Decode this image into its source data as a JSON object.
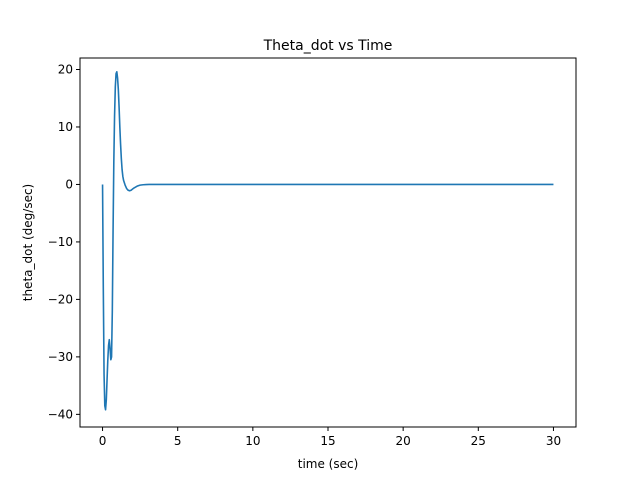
{
  "chart_data": {
    "type": "line",
    "title": "Theta_dot vs Time",
    "xlabel": "time (sec)",
    "ylabel": "theta_dot (deg/sec)",
    "xlim": [
      -1.5,
      31.5
    ],
    "ylim": [
      -42.2,
      22.0
    ],
    "xticks": [
      0,
      5,
      10,
      15,
      20,
      25,
      30
    ],
    "yticks": [
      -40,
      -30,
      -20,
      -10,
      0,
      10,
      20
    ],
    "grid": false,
    "legend": "none",
    "series": [
      {
        "color": "#1f77b4",
        "x": [
          0,
          0.05,
          0.1,
          0.15,
          0.2,
          0.25,
          0.3,
          0.35,
          0.4,
          0.45,
          0.5,
          0.55,
          0.6,
          0.65,
          0.7,
          0.75,
          0.8,
          0.85,
          0.9,
          0.95,
          1.0,
          1.05,
          1.1,
          1.15,
          1.2,
          1.25,
          1.3,
          1.35,
          1.4,
          1.5,
          1.6,
          1.7,
          1.8,
          1.9,
          2.0,
          2.1,
          2.2,
          2.3,
          2.4,
          2.5,
          2.7,
          2.9,
          3.1,
          3.3,
          3.6,
          4.0,
          4.5,
          5,
          6,
          8,
          10,
          15,
          20,
          25,
          30
        ],
        "y": [
          0,
          -18,
          -33,
          -38.5,
          -39.2,
          -37.5,
          -34,
          -30.5,
          -28,
          -27,
          -28.5,
          -30.5,
          -30,
          -22,
          -8,
          4,
          12,
          17,
          19.3,
          19.6,
          18.5,
          16.5,
          13.5,
          10,
          7,
          4.5,
          2.6,
          1.4,
          0.7,
          -0.1,
          -0.7,
          -1.0,
          -1.1,
          -1.0,
          -0.8,
          -0.6,
          -0.45,
          -0.3,
          -0.2,
          -0.12,
          -0.05,
          -0.02,
          0,
          0,
          0,
          0,
          0,
          0,
          0,
          0,
          0,
          0,
          0,
          0,
          0
        ]
      }
    ]
  }
}
